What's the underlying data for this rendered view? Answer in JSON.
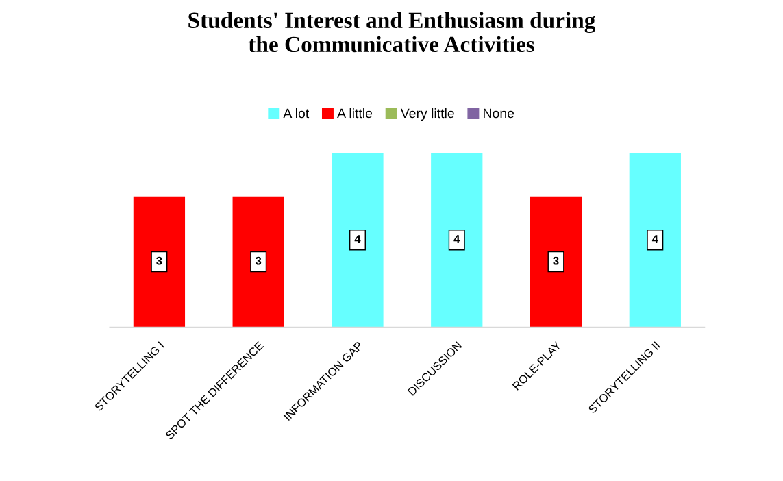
{
  "chart_data": {
    "type": "bar",
    "title": "Students' Interest and Enthusiasm during\nthe Communicative Activities",
    "categories": [
      "STORYTELLING I",
      "SPOT THE DIFFERENCE",
      "INFORMATION GAP",
      "DISCUSSION",
      "ROLE-PLAY",
      "STORYTELLING II"
    ],
    "series": [
      {
        "name": "A lot",
        "color": "#66ffff",
        "values": [
          null,
          null,
          4,
          4,
          null,
          4
        ]
      },
      {
        "name": "A little",
        "color": "#ff0000",
        "values": [
          3,
          3,
          null,
          null,
          3,
          null
        ]
      },
      {
        "name": "Very little",
        "color": "#9bbb59",
        "values": [
          null,
          null,
          null,
          null,
          null,
          null
        ]
      },
      {
        "name": "None",
        "color": "#8064a2",
        "values": [
          null,
          null,
          null,
          null,
          null,
          null
        ]
      }
    ],
    "data_labels": true,
    "legend": "top",
    "grid": false
  }
}
